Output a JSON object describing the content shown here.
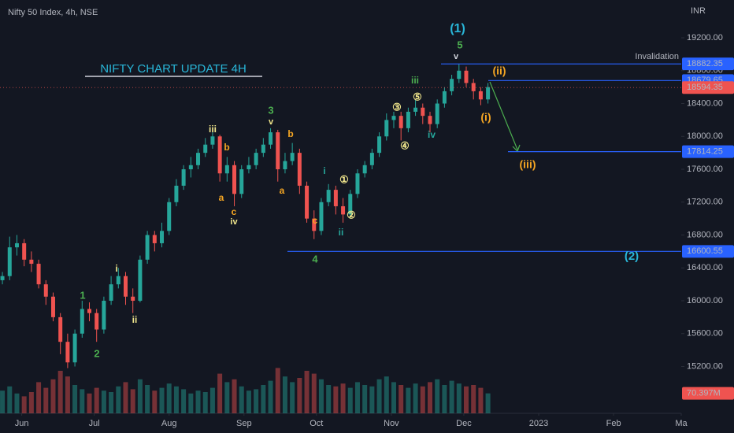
{
  "chart_data": {
    "type": "candlestick",
    "title": "Nifty 50 Index, 4h, NSE",
    "currency": "INR",
    "headline": "NIFTY CHART UPDATE 4H",
    "up_color": "#26a69a",
    "down_color": "#ef5350",
    "grid": false,
    "xlim": [
      -9,
      273
    ],
    "ylim": [
      14630,
      19660
    ],
    "vlim": [
      0,
      250
    ],
    "xticks": [
      {
        "value": 0,
        "label": "Jun"
      },
      {
        "value": 30,
        "label": "Jul"
      },
      {
        "value": 61,
        "label": "Aug"
      },
      {
        "value": 92,
        "label": "Sep"
      },
      {
        "value": 122,
        "label": "Oct"
      },
      {
        "value": 153,
        "label": "Nov"
      },
      {
        "value": 183,
        "label": "Dec"
      },
      {
        "value": 214,
        "label": "2023"
      },
      {
        "value": 245,
        "label": "Feb"
      },
      {
        "value": 273,
        "label": "Ma"
      }
    ],
    "yticks": [
      {
        "value": 15200,
        "label": "15200.00"
      },
      {
        "value": 15600,
        "label": "15600.00"
      },
      {
        "value": 16000,
        "label": "16000.00"
      },
      {
        "value": 16400,
        "label": "16400.00"
      },
      {
        "value": 16800,
        "label": "16800.00"
      },
      {
        "value": 17200,
        "label": "17200.00"
      },
      {
        "value": 17600,
        "label": "17600.00"
      },
      {
        "value": 18000,
        "label": "18000.00"
      },
      {
        "value": 18400,
        "label": "18400.00"
      },
      {
        "value": 18800,
        "label": "18800.00"
      },
      {
        "value": 19200,
        "label": "19200.00"
      }
    ],
    "x": [
      -8,
      -5,
      -2,
      1,
      4,
      7,
      10,
      13,
      16,
      19,
      22,
      25,
      28,
      31,
      34,
      37,
      40,
      43,
      46,
      49,
      52,
      55,
      58,
      61,
      64,
      67,
      70,
      73,
      76,
      79,
      82,
      85,
      88,
      91,
      94,
      97,
      100,
      103,
      106,
      109,
      112,
      115,
      118,
      121,
      124,
      127,
      130,
      133,
      136,
      139,
      142,
      145,
      148,
      151,
      154,
      157,
      160,
      163,
      166,
      169,
      172,
      175,
      178,
      181,
      184,
      187,
      190,
      193
    ],
    "open": [
      16250,
      16300,
      16650,
      16700,
      16500,
      16450,
      16200,
      16050,
      15800,
      15500,
      15250,
      15600,
      15900,
      15850,
      15650,
      16000,
      16200,
      16300,
      16050,
      16000,
      16500,
      16800,
      16700,
      16850,
      17200,
      17400,
      17600,
      17650,
      17800,
      17900,
      18000,
      17550,
      17650,
      17300,
      17600,
      17650,
      17800,
      17900,
      18050,
      17600,
      17700,
      17800,
      17400,
      17000,
      16850,
      17200,
      17350,
      17150,
      17050,
      17300,
      17550,
      17650,
      17800,
      18000,
      18200,
      18250,
      18100,
      18300,
      18350,
      18250,
      18150,
      18400,
      18550,
      18700,
      18800,
      18650,
      18550,
      18450
    ],
    "high": [
      16350,
      16780,
      16800,
      16750,
      16600,
      16500,
      16250,
      16100,
      15850,
      15600,
      15650,
      16000,
      15980,
      15900,
      16050,
      16300,
      16400,
      16350,
      16150,
      16550,
      16850,
      16850,
      16950,
      17250,
      17480,
      17650,
      17750,
      17850,
      17980,
      18050,
      18020,
      17750,
      17700,
      17650,
      17750,
      17850,
      17980,
      18100,
      18080,
      17800,
      17920,
      17850,
      17450,
      17100,
      17250,
      17420,
      17400,
      17250,
      17350,
      17600,
      17700,
      17850,
      18050,
      18280,
      18300,
      18300,
      18350,
      18450,
      18400,
      18300,
      18450,
      18600,
      18750,
      18880,
      18850,
      18700,
      18600,
      18650
    ],
    "low": [
      16200,
      16250,
      16550,
      16420,
      16350,
      16150,
      15950,
      15750,
      15350,
      15180,
      15200,
      15550,
      15750,
      15500,
      15600,
      15950,
      16150,
      15950,
      15850,
      15980,
      16450,
      16600,
      16650,
      16800,
      17150,
      17350,
      17500,
      17600,
      17750,
      17850,
      17450,
      17450,
      17150,
      17250,
      17550,
      17600,
      17750,
      17850,
      17450,
      17550,
      17650,
      17300,
      16950,
      16750,
      16800,
      17150,
      17050,
      16950,
      17000,
      17250,
      17500,
      17600,
      17750,
      17950,
      18100,
      17950,
      18050,
      18250,
      18150,
      18050,
      18100,
      18350,
      18500,
      18650,
      18600,
      18450,
      18380,
      18400
    ],
    "close": [
      16300,
      16650,
      16700,
      16500,
      16450,
      16200,
      16050,
      15800,
      15500,
      15250,
      15600,
      15900,
      15850,
      15650,
      16000,
      16200,
      16300,
      16050,
      16000,
      16500,
      16800,
      16700,
      16850,
      17200,
      17400,
      17600,
      17650,
      17800,
      17900,
      18000,
      17550,
      17650,
      17300,
      17600,
      17650,
      17800,
      17900,
      18050,
      17600,
      17700,
      17800,
      17400,
      17000,
      16850,
      17200,
      17350,
      17150,
      17050,
      17300,
      17550,
      17650,
      17800,
      18000,
      18200,
      18250,
      18100,
      18300,
      18350,
      18250,
      18150,
      18400,
      18550,
      18700,
      18800,
      18650,
      18550,
      18450,
      18600
    ],
    "volume": [
      80,
      95,
      70,
      60,
      75,
      110,
      90,
      120,
      150,
      130,
      100,
      85,
      70,
      90,
      80,
      75,
      95,
      110,
      85,
      120,
      100,
      80,
      90,
      105,
      95,
      85,
      70,
      80,
      75,
      90,
      140,
      110,
      120,
      95,
      80,
      85,
      100,
      115,
      160,
      130,
      110,
      125,
      150,
      140,
      120,
      100,
      95,
      105,
      90,
      110,
      100,
      95,
      120,
      130,
      110,
      100,
      90,
      105,
      95,
      110,
      120,
      100,
      115,
      105,
      95,
      100,
      90,
      70.397
    ],
    "volume_badge": {
      "value": 70.397,
      "label": "70.397M"
    },
    "last_price": {
      "value": 18594.35,
      "label": "18594.35"
    },
    "levels": [
      {
        "value": 18882.35,
        "label": "18882.35"
      },
      {
        "value": 18679.65,
        "label": "18679.65"
      },
      {
        "value": 17814.25,
        "label": "17814.25"
      },
      {
        "value": 16600.55,
        "label": "16600.55"
      }
    ],
    "level_note": "Invalidation",
    "annotations": [
      {
        "text": "(1)",
        "color": "#29b6d8"
      },
      {
        "text": "5",
        "color": "#4caf50"
      },
      {
        "text": "v",
        "color": "#d1d4dc"
      },
      {
        "text": "(ii)",
        "color": "#f5a623"
      },
      {
        "text": "(i)",
        "color": "#f5a623"
      },
      {
        "text": "(iii)",
        "color": "#f5a623"
      },
      {
        "text": "(2)",
        "color": "#29b6d8"
      },
      {
        "text": "iii",
        "color": "#4caf50"
      },
      {
        "text": "iv",
        "color": "#26a69a"
      },
      {
        "text": "3",
        "color": "#4caf50"
      },
      {
        "text": "v",
        "color": "#f0e68c"
      },
      {
        "text": "b",
        "color": "#f5a623"
      },
      {
        "text": "a",
        "color": "#f5a623"
      },
      {
        "text": "c",
        "color": "#f5a623"
      },
      {
        "text": "4",
        "color": "#4caf50"
      },
      {
        "text": "iii",
        "color": "#f0e68c"
      },
      {
        "text": "b",
        "color": "#f5a623"
      },
      {
        "text": "a",
        "color": "#f5a623"
      },
      {
        "text": "c",
        "color": "#f5a623"
      },
      {
        "text": "iv",
        "color": "#f0e68c"
      },
      {
        "text": "i",
        "color": "#26a69a"
      },
      {
        "text": "ii",
        "color": "#26a69a"
      },
      {
        "text": "i",
        "color": "#f0e68c"
      },
      {
        "text": "ii",
        "color": "#f0e68c"
      },
      {
        "text": "1",
        "color": "#4caf50"
      },
      {
        "text": "2",
        "color": "#4caf50"
      },
      {
        "text": "①",
        "color": "#f0e68c"
      },
      {
        "text": "②",
        "color": "#f0e68c"
      },
      {
        "text": "③",
        "color": "#f0e68c"
      },
      {
        "text": "④",
        "color": "#f0e68c"
      },
      {
        "text": "⑤",
        "color": "#f0e68c"
      }
    ]
  }
}
